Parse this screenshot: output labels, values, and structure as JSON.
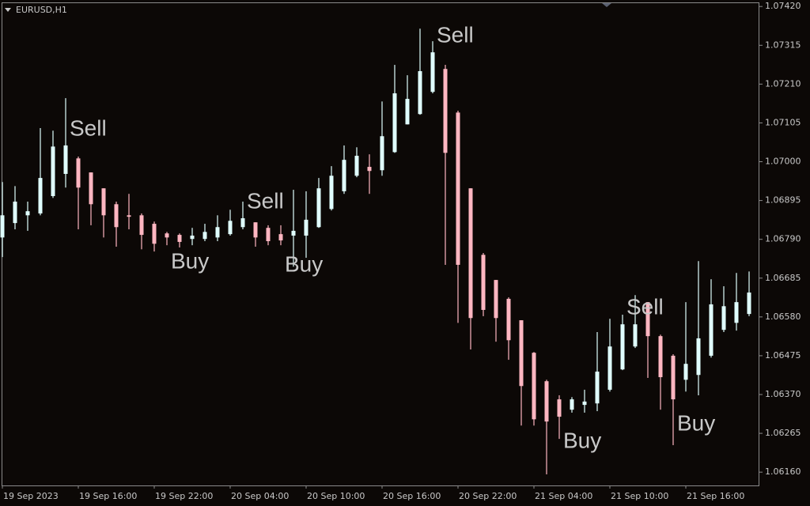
{
  "chart_data": {
    "type": "candlestick",
    "title": "EURUSD,H1",
    "categories": [
      "19 Sep 2023",
      null,
      null,
      null,
      null,
      null,
      "19 Sep 16:00",
      null,
      null,
      null,
      null,
      null,
      "19 Sep 22:00",
      null,
      null,
      null,
      null,
      null,
      "20 Sep 04:00",
      null,
      null,
      null,
      null,
      null,
      "20 Sep 10:00",
      null,
      null,
      null,
      null,
      null,
      "20 Sep 16:00",
      null,
      null,
      null,
      null,
      null,
      "20 Sep 22:00",
      null,
      null,
      null,
      null,
      null,
      "21 Sep 04:00",
      null,
      null,
      null,
      null,
      null,
      "21 Sep 10:00",
      null,
      null,
      null,
      null,
      null,
      "21 Sep 16:00",
      null,
      null,
      null,
      null,
      null
    ],
    "open": [
      1.06795,
      1.06834,
      1.06855,
      1.0686,
      1.06907,
      1.06967,
      1.07009,
      1.06971,
      1.06928,
      1.06885,
      1.06855,
      1.06855,
      1.06832,
      1.06806,
      1.06802,
      1.06791,
      1.06791,
      1.06795,
      1.06804,
      1.06823,
      1.06836,
      1.06821,
      1.06804,
      1.068,
      1.068,
      1.06823,
      1.06872,
      1.0692,
      1.06962,
      1.06986,
      1.06977,
      1.07026,
      1.07101,
      1.07129,
      1.07189,
      1.07251,
      1.07133,
      1.06928,
      1.06748,
      1.0668,
      1.06629,
      1.06571,
      1.06483,
      1.06406,
      1.06357,
      1.06329,
      1.06342,
      1.06346,
      1.06383,
      1.06438,
      1.065,
      1.0662,
      1.06528,
      1.06475,
      1.0641,
      1.06423,
      1.06475,
      1.06545,
      1.06564,
      1.06588
    ],
    "high": [
      1.06945,
      1.06934,
      1.06892,
      1.07091,
      1.07084,
      1.07172,
      1.07014,
      1.06971,
      1.06928,
      1.06892,
      1.06913,
      1.0686,
      1.06838,
      1.0681,
      1.06806,
      1.06821,
      1.06832,
      1.06855,
      1.0687,
      1.06892,
      1.06836,
      1.06828,
      1.06828,
      1.06924,
      1.0692,
      1.06956,
      1.06988,
      1.07044,
      1.07039,
      1.0702,
      1.07163,
      1.07262,
      1.07234,
      1.0736,
      1.07326,
      1.07262,
      1.07138,
      1.06928,
      1.06753,
      1.0668,
      1.06633,
      1.06571,
      1.06485,
      1.0641,
      1.06368,
      1.06363,
      1.06383,
      1.06539,
      1.06575,
      1.06586,
      1.06639,
      1.0662,
      1.06532,
      1.06479,
      1.0662,
      1.06731,
      1.06682,
      1.06663,
      1.06699,
      1.06703
    ],
    "low": [
      1.06742,
      1.06817,
      1.06813,
      1.06855,
      1.06902,
      1.0693,
      1.06817,
      1.06828,
      1.06795,
      1.0677,
      1.06817,
      1.06763,
      1.06757,
      1.06774,
      1.06768,
      1.06774,
      1.06785,
      1.06785,
      1.068,
      1.06817,
      1.0677,
      1.06774,
      1.06774,
      1.06716,
      1.0674,
      1.06821,
      1.06868,
      1.06913,
      1.06958,
      1.06913,
      1.06962,
      1.07024,
      1.07101,
      1.07127,
      1.07185,
      1.06721,
      1.06564,
      1.06492,
      1.06582,
      1.06513,
      1.06464,
      1.06286,
      1.06286,
      1.06154,
      1.0625,
      1.06321,
      1.06321,
      1.06325,
      1.06378,
      1.06436,
      1.06496,
      1.06415,
      1.06329,
      1.06233,
      1.06378,
      1.06368,
      1.0647,
      1.06539,
      1.06543,
      1.06582
    ],
    "close": [
      1.06855,
      1.06892,
      1.06866,
      1.06956,
      1.07041,
      1.07044,
      1.0693,
      1.06885,
      1.06855,
      1.06823,
      1.06851,
      1.06802,
      1.06778,
      1.06795,
      1.06783,
      1.068,
      1.0681,
      1.06823,
      1.0684,
      1.06847,
      1.06795,
      1.06785,
      1.06787,
      1.06813,
      1.06843,
      1.06928,
      1.06962,
      1.07005,
      1.07016,
      1.06975,
      1.07069,
      1.07185,
      1.0717,
      1.07245,
      1.07296,
      1.07024,
      1.06721,
      1.06577,
      1.06599,
      1.06577,
      1.06517,
      1.06393,
      1.06303,
      1.06297,
      1.0631,
      1.06357,
      1.06351,
      1.06432,
      1.065,
      1.0656,
      1.0656,
      1.06528,
      1.06417,
      1.06357,
      1.06453,
      1.06522,
      1.06614,
      1.06609,
      1.0662,
      1.06646
    ],
    "signals": [
      null,
      null,
      null,
      null,
      null,
      "Sell",
      null,
      null,
      null,
      null,
      null,
      null,
      null,
      "Buy",
      null,
      null,
      null,
      null,
      null,
      "Sell",
      null,
      null,
      "Buy",
      null,
      null,
      null,
      null,
      null,
      null,
      null,
      null,
      null,
      null,
      null,
      "Sell",
      null,
      null,
      null,
      null,
      null,
      null,
      null,
      null,
      null,
      "Buy",
      null,
      null,
      null,
      null,
      "Sell",
      null,
      null,
      null,
      "Buy",
      null,
      null,
      null,
      null,
      null,
      null
    ],
    "up_color": "#e0ffff",
    "down_color": "#ffb6c1",
    "signal_color": "#c8c8c8",
    "ylim": [
      1.06124,
      1.07429
    ],
    "yticks": [
      {
        "value": 1.0742,
        "label": "1.07420"
      },
      {
        "value": 1.07315,
        "label": "1.07315"
      },
      {
        "value": 1.0721,
        "label": "1.07210"
      },
      {
        "value": 1.07105,
        "label": "1.07105"
      },
      {
        "value": 1.07,
        "label": "1.07000"
      },
      {
        "value": 1.06895,
        "label": "1.06895"
      },
      {
        "value": 1.0679,
        "label": "1.06790"
      },
      {
        "value": 1.06685,
        "label": "1.06685"
      },
      {
        "value": 1.0658,
        "label": "1.06580"
      },
      {
        "value": 1.06475,
        "label": "1.06475"
      },
      {
        "value": 1.0637,
        "label": "1.06370"
      },
      {
        "value": 1.06265,
        "label": "1.06265"
      },
      {
        "value": 1.0616,
        "label": "1.06160"
      }
    ]
  }
}
